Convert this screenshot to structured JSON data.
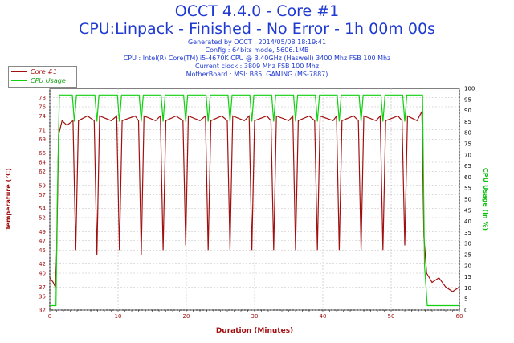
{
  "header": {
    "title_line1": "OCCT 4.4.0 - Core #1",
    "title_line2": "CPU:Linpack - Finished - No Error - 1h 00m 00s",
    "info_lines": [
      "Generated by OCCT : 2014/05/08 18:19:41",
      "Config : 64bits mode, 5606.1MB",
      "CPU : Intel(R) Core(TM) i5-4670K CPU @ 3.40GHz (Haswell) 3400 Mhz FSB 100 Mhz",
      "Current clock : 3809 Mhz FSB 100 Mhz",
      "MotherBoard : MSI: B85I GAMING (MS-7887)"
    ]
  },
  "legend": {
    "items": [
      {
        "label": "Core #1",
        "color": "#a01010"
      },
      {
        "label": "CPU Usage",
        "color": "#10d010"
      }
    ]
  },
  "chart_data": {
    "type": "line",
    "xlabel": "Duration (Minutes)",
    "ylabel_left": "Temperature (°C)",
    "ylabel_right": "CPU Usage (in %)",
    "xlim": [
      0,
      60
    ],
    "ylim_left": [
      32,
      80
    ],
    "ylim_right": [
      0,
      100
    ],
    "x_ticks": [
      0,
      10,
      20,
      30,
      40,
      50,
      60
    ],
    "y_left_ticks": [
      32,
      35,
      37,
      40,
      42,
      45,
      47,
      49,
      52,
      54,
      57,
      59,
      62,
      64,
      66,
      69,
      71,
      74,
      76,
      78
    ],
    "y_right_ticks": [
      0,
      5,
      10,
      15,
      20,
      25,
      30,
      35,
      40,
      45,
      50,
      55,
      60,
      65,
      70,
      75,
      80,
      85,
      90,
      95,
      100
    ],
    "grid": true,
    "legend_position": "top-left",
    "colors": {
      "temperature": "#a01010",
      "cpu_usage": "#10d010",
      "axis_text": "#a01010",
      "right_axis_text": "#10c010",
      "title": "#1f3ad1"
    },
    "series": [
      {
        "name": "Core #1",
        "axis": "left",
        "points": [
          [
            0,
            39
          ],
          [
            0.5,
            38
          ],
          [
            0.8,
            37
          ],
          [
            1.0,
            44
          ],
          [
            1.3,
            70
          ],
          [
            1.8,
            73
          ],
          [
            2.5,
            72
          ],
          [
            3.4,
            73
          ],
          [
            3.8,
            45
          ],
          [
            4.2,
            73
          ],
          [
            5.5,
            74
          ],
          [
            6.5,
            73
          ],
          [
            6.9,
            44
          ],
          [
            7.3,
            74
          ],
          [
            9.0,
            73
          ],
          [
            9.8,
            74
          ],
          [
            10.2,
            45
          ],
          [
            10.6,
            73
          ],
          [
            12.5,
            74
          ],
          [
            13.0,
            73
          ],
          [
            13.4,
            44
          ],
          [
            13.8,
            74
          ],
          [
            15.5,
            73
          ],
          [
            16.2,
            74
          ],
          [
            16.6,
            45
          ],
          [
            17.0,
            73
          ],
          [
            18.5,
            74
          ],
          [
            19.5,
            73
          ],
          [
            19.9,
            46
          ],
          [
            20.3,
            74
          ],
          [
            22.0,
            73
          ],
          [
            22.8,
            74
          ],
          [
            23.2,
            45
          ],
          [
            23.6,
            73
          ],
          [
            25.2,
            74
          ],
          [
            26.0,
            73
          ],
          [
            26.4,
            45
          ],
          [
            26.8,
            74
          ],
          [
            28.5,
            73
          ],
          [
            29.2,
            74
          ],
          [
            29.6,
            45
          ],
          [
            30.0,
            73
          ],
          [
            31.8,
            74
          ],
          [
            32.4,
            73
          ],
          [
            32.8,
            45
          ],
          [
            33.2,
            74
          ],
          [
            35.0,
            73
          ],
          [
            35.6,
            74
          ],
          [
            36.0,
            45
          ],
          [
            36.4,
            73
          ],
          [
            38.0,
            74
          ],
          [
            38.8,
            73
          ],
          [
            39.2,
            45
          ],
          [
            39.6,
            74
          ],
          [
            41.5,
            73
          ],
          [
            42.0,
            74
          ],
          [
            42.4,
            45
          ],
          [
            42.8,
            73
          ],
          [
            44.5,
            74
          ],
          [
            45.2,
            73
          ],
          [
            45.6,
            45
          ],
          [
            46.0,
            74
          ],
          [
            47.8,
            73
          ],
          [
            48.4,
            74
          ],
          [
            48.8,
            45
          ],
          [
            49.2,
            73
          ],
          [
            51.0,
            74
          ],
          [
            51.6,
            73
          ],
          [
            52.0,
            46
          ],
          [
            52.4,
            74
          ],
          [
            53.8,
            73
          ],
          [
            54.5,
            75
          ],
          [
            54.8,
            48
          ],
          [
            55.2,
            40
          ],
          [
            56.0,
            38
          ],
          [
            57.0,
            39
          ],
          [
            58.0,
            37
          ],
          [
            59.0,
            36
          ],
          [
            60,
            37
          ]
        ]
      },
      {
        "name": "CPU Usage",
        "axis": "right",
        "points": [
          [
            0,
            2
          ],
          [
            0.9,
            2
          ],
          [
            1.1,
            50
          ],
          [
            1.4,
            97
          ],
          [
            3.3,
            97
          ],
          [
            3.6,
            85
          ],
          [
            3.9,
            97
          ],
          [
            6.6,
            97
          ],
          [
            6.9,
            85
          ],
          [
            7.2,
            97
          ],
          [
            9.9,
            97
          ],
          [
            10.2,
            85
          ],
          [
            10.5,
            97
          ],
          [
            13.1,
            97
          ],
          [
            13.4,
            85
          ],
          [
            13.7,
            97
          ],
          [
            16.3,
            97
          ],
          [
            16.6,
            85
          ],
          [
            16.9,
            97
          ],
          [
            19.6,
            97
          ],
          [
            19.9,
            85
          ],
          [
            20.2,
            97
          ],
          [
            22.9,
            97
          ],
          [
            23.2,
            85
          ],
          [
            23.5,
            97
          ],
          [
            26.1,
            97
          ],
          [
            26.4,
            85
          ],
          [
            26.7,
            97
          ],
          [
            29.3,
            97
          ],
          [
            29.6,
            85
          ],
          [
            29.9,
            97
          ],
          [
            32.5,
            97
          ],
          [
            32.8,
            85
          ],
          [
            33.1,
            97
          ],
          [
            35.7,
            97
          ],
          [
            36.0,
            85
          ],
          [
            36.3,
            97
          ],
          [
            38.9,
            97
          ],
          [
            39.2,
            85
          ],
          [
            39.5,
            97
          ],
          [
            42.1,
            97
          ],
          [
            42.4,
            85
          ],
          [
            42.7,
            97
          ],
          [
            45.3,
            97
          ],
          [
            45.6,
            85
          ],
          [
            45.9,
            97
          ],
          [
            48.5,
            97
          ],
          [
            48.8,
            85
          ],
          [
            49.1,
            97
          ],
          [
            51.7,
            97
          ],
          [
            52.0,
            85
          ],
          [
            52.3,
            97
          ],
          [
            54.6,
            97
          ],
          [
            54.9,
            20
          ],
          [
            55.3,
            2
          ],
          [
            60,
            2
          ]
        ]
      }
    ]
  }
}
